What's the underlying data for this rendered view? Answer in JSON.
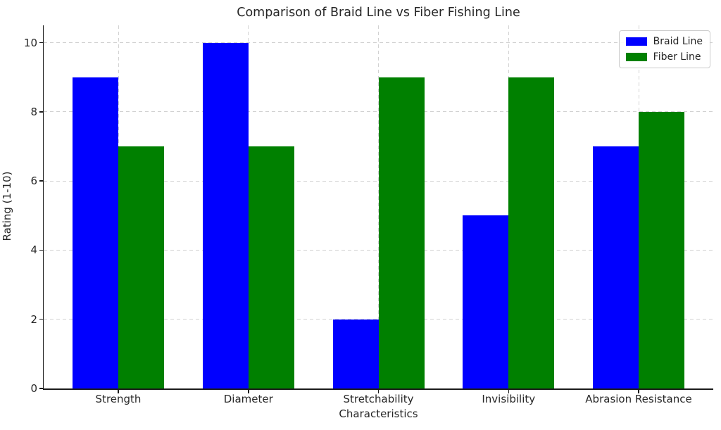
{
  "chart_data": {
    "type": "bar",
    "title": "Comparison of Braid Line vs Fiber Fishing Line",
    "xlabel": "Characteristics",
    "ylabel": "Rating (1-10)",
    "categories": [
      "Strength",
      "Diameter",
      "Stretchability",
      "Invisibility",
      "Abrasion Resistance"
    ],
    "series": [
      {
        "name": "Braid Line",
        "color": "#0000ff",
        "values": [
          9,
          10,
          2,
          5,
          7
        ]
      },
      {
        "name": "Fiber Line",
        "color": "#008000",
        "values": [
          7,
          7,
          9,
          9,
          8
        ]
      }
    ],
    "yticks": [
      0,
      2,
      4,
      6,
      8,
      10
    ],
    "ylim": [
      0,
      10.5
    ],
    "grid": true,
    "grid_style": "dashed",
    "legend_position": "top-right",
    "colors": {
      "grid": "#d2d2d2",
      "spine": "#1a1a1a",
      "text": "#262626",
      "background": "#ffffff"
    }
  }
}
